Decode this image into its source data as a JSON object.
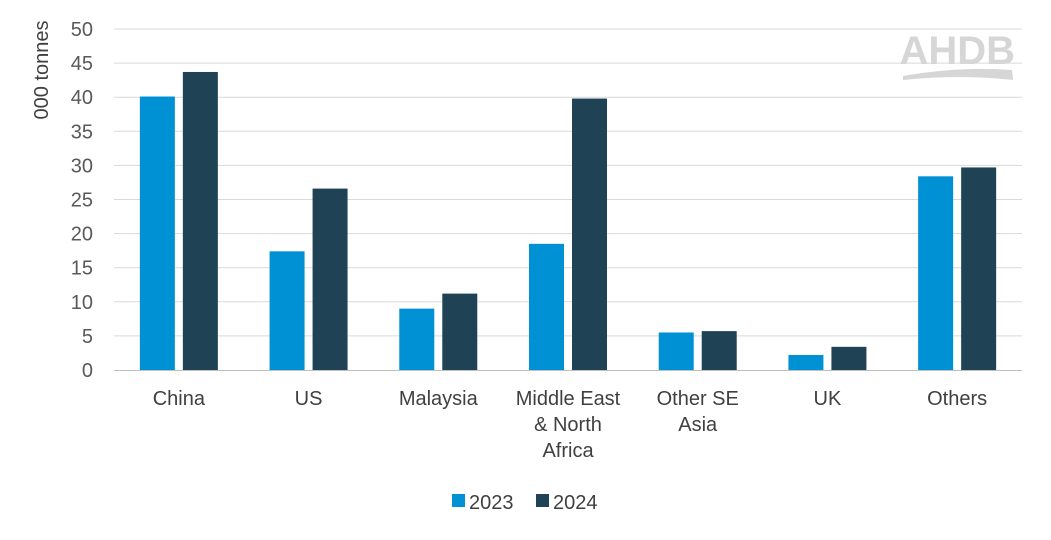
{
  "chart_data": {
    "type": "bar",
    "title": "",
    "xlabel": "",
    "ylabel": "000 tonnes",
    "ylim": [
      0,
      50
    ],
    "yticks": [
      0,
      5,
      10,
      15,
      20,
      25,
      30,
      35,
      40,
      45,
      50
    ],
    "grid": true,
    "legend_position": "bottom",
    "categories": [
      [
        "China"
      ],
      [
        "US"
      ],
      [
        "Malaysia"
      ],
      [
        "Middle East",
        "& North",
        "Africa"
      ],
      [
        "Other SE",
        "Asia"
      ],
      [
        "UK"
      ],
      [
        "Others"
      ]
    ],
    "series": [
      {
        "name": "2023",
        "color": "#0090d4",
        "values": [
          40.1,
          17.4,
          9.0,
          18.5,
          5.5,
          2.2,
          28.4
        ]
      },
      {
        "name": "2024",
        "color": "#1f4354",
        "values": [
          43.7,
          26.6,
          11.2,
          39.8,
          5.7,
          3.4,
          29.7
        ]
      }
    ]
  },
  "logo": {
    "text": "AHDB",
    "color": "#d6d6d6"
  }
}
